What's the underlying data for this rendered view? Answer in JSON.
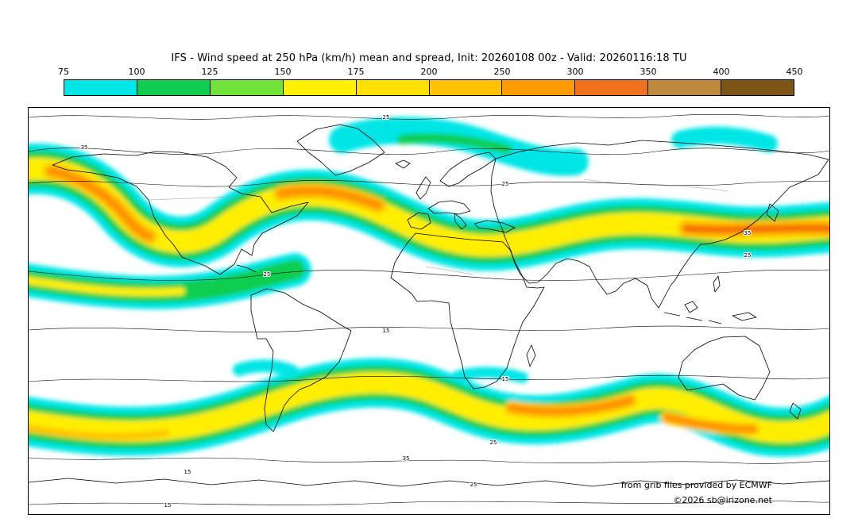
{
  "header": {
    "title": "IFS - Wind speed at 250 hPa (km/h) mean and spread, Init: 20260108 00z - Valid: 20260116:18 TU"
  },
  "colorbar": {
    "ticks": [
      "75",
      "100",
      "125",
      "150",
      "175",
      "200",
      "250",
      "300",
      "350",
      "400",
      "450"
    ],
    "colors": [
      "#00e6e6",
      "#0fce4f",
      "#70e23a",
      "#fff200",
      "#ffe100",
      "#ffc100",
      "#ff9a00",
      "#f0711c",
      "#bf8a3e",
      "#7c5415"
    ]
  },
  "map": {
    "contour_labels": {
      "v15": "15",
      "v25": "25",
      "v35": "35"
    },
    "attribution_line1": "from grib files provided by ECMWF",
    "attribution_line2": "©2026 sb@irizone.net"
  },
  "chart_data": {
    "type": "heatmap",
    "title": "IFS - Wind speed at 250 hPa (km/h) mean and spread, Init: 20260108 00z - Valid: 20260116:18 TU",
    "model": "IFS",
    "variable": "Wind speed at 250 hPa",
    "units": "km/h",
    "statistic": "mean and spread",
    "init": "20260108 00z",
    "valid": "20260116:18 TU",
    "scale_ticks": [
      75,
      100,
      125,
      150,
      175,
      200,
      250,
      300,
      350,
      400,
      450
    ],
    "scale_colors": [
      "#00e6e6",
      "#0fce4f",
      "#70e23a",
      "#fff200",
      "#ffe100",
      "#ffc100",
      "#ff9a00",
      "#f0711c",
      "#bf8a3e",
      "#7c5415"
    ],
    "spread_contour_levels": [
      15,
      25,
      35
    ],
    "projection": "global equirectangular world map",
    "legend_position": "top",
    "notes": "Filled bands show the 250 hPa jet streams in both hemispheres; strongest cores (orange, 200-300 km/h) over western North America, the North Atlantic into Europe, the western Pacific east of Asia, the southern Indian Ocean and south of Australia; thin black contours show ensemble spread at levels 15, 25 and 35.",
    "credit": "from grib files provided by ECMWF, ©2026 sb@irizone.net"
  }
}
